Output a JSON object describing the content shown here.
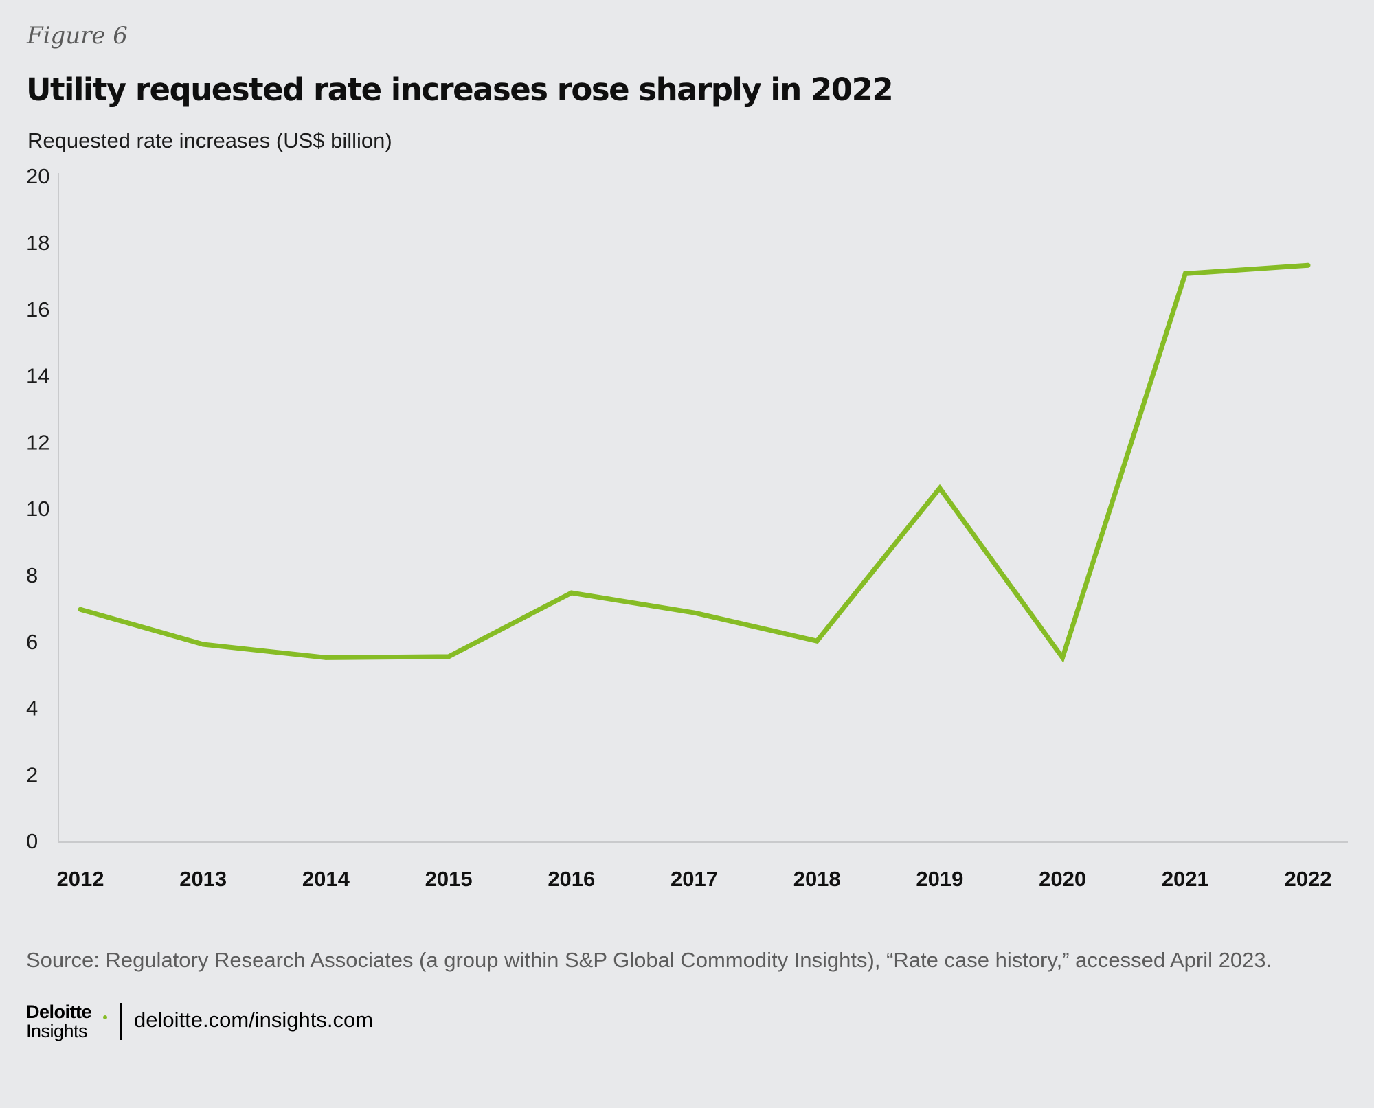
{
  "figure_label": "Figure 6",
  "title": "Utility requested rate increases rose sharply in 2022",
  "unit_label": "Requested rate increases (US$ billion)",
  "source": "Source: Regulatory Research Associates (a group within S&P Global Commodity Insights), “Rate case history,” accessed April 2023.",
  "footer": {
    "brand": "Deloitte",
    "brand_sub": "Insights",
    "url": "deloitte.com/insights.com"
  },
  "colors": {
    "line": "#86bc25",
    "background": "#e8e9eb",
    "axis": "#c9cacc"
  },
  "chart_data": {
    "type": "line",
    "x": [
      "2012",
      "2013",
      "2014",
      "2015",
      "2016",
      "2017",
      "2018",
      "2019",
      "2020",
      "2021",
      "2022"
    ],
    "series": [
      {
        "values": [
          7.0,
          5.95,
          5.55,
          5.58,
          7.5,
          6.9,
          6.05,
          10.65,
          5.55,
          17.1,
          17.35
        ]
      }
    ],
    "ylim": [
      0,
      20
    ],
    "yticks": [
      0,
      2,
      4,
      6,
      8,
      10,
      12,
      14,
      16,
      18,
      20
    ],
    "title": "Utility requested rate increases rose sharply in 2022",
    "ylabel": "Requested rate increases (US$ billion)",
    "xlabel": "",
    "grid": false,
    "legend": "none"
  }
}
